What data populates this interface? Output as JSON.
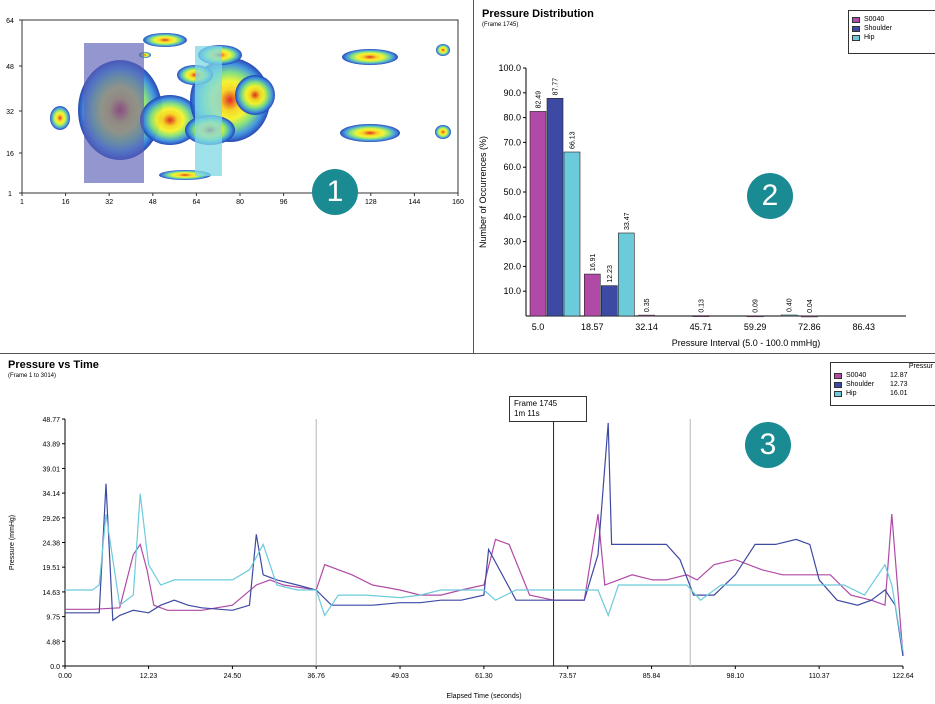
{
  "panel1": {
    "badge": "1",
    "y_ticks": [
      "64",
      "48",
      "32",
      "16",
      "1"
    ],
    "x_ticks": [
      "1",
      "16",
      "32",
      "48",
      "64",
      "80",
      "96",
      "112",
      "128",
      "144",
      "160"
    ],
    "colors": {
      "shoulder_overlay": "#5a5fb5",
      "hip_overlay": "#7fd8e6"
    }
  },
  "chart_data": [
    {
      "type": "bar",
      "title": "Pressure Distribution",
      "subtitle": "(Frame 1745)",
      "xlabel": "Pressure Interval (5.0 - 100.0 mmHg)",
      "ylabel": "Number of Occurrences (%)",
      "ylim": [
        0,
        100
      ],
      "y_ticks": [
        "10.0",
        "20.0",
        "30.0",
        "40.0",
        "50.0",
        "60.0",
        "70.0",
        "80.0",
        "90.0",
        "100.0"
      ],
      "categories": [
        "5.0",
        "18.57",
        "32.14",
        "45.71",
        "59.29",
        "72.86",
        "86.43"
      ],
      "series": [
        {
          "name": "S0040",
          "color": "#b14aa6",
          "values": [
            82.49,
            16.91,
            0.35,
            0.13,
            0.09,
            0.04,
            0
          ],
          "labels": [
            "82.49",
            "16.91",
            "0.35",
            "0.13",
            "0.09",
            "0.04",
            ""
          ]
        },
        {
          "name": "Shoulder",
          "color": "#3d4aa3",
          "values": [
            87.77,
            12.23,
            0,
            0,
            0,
            0,
            0
          ],
          "labels": [
            "87.77",
            "12.23",
            "",
            "",
            "",
            "",
            ""
          ]
        },
        {
          "name": "Hip",
          "color": "#6ccbdb",
          "values": [
            66.13,
            33.47,
            0,
            0,
            0.4,
            0,
            0
          ],
          "labels": [
            "66.13",
            "33.47",
            "",
            "",
            "0.40",
            "",
            ""
          ]
        }
      ],
      "legend_position": "top-right",
      "badge": "2"
    },
    {
      "type": "line",
      "title": "Pressure vs Time",
      "subtitle": "(Frame 1 to 3014)",
      "xlabel": "Elapsed Time (seconds)",
      "ylabel": "Pressure (mmHg)",
      "xlim": [
        0,
        122.64
      ],
      "ylim": [
        0,
        48.77
      ],
      "x_ticks": [
        "0.00",
        "12.23",
        "24.50",
        "36.76",
        "49.03",
        "61.30",
        "73.57",
        "85.84",
        "98.10",
        "110.37",
        "122.64"
      ],
      "y_ticks": [
        "0.0",
        "4.88",
        "9.75",
        "14.63",
        "19.51",
        "24.38",
        "29.26",
        "34.14",
        "39.01",
        "43.89",
        "48.77"
      ],
      "legend_header": "Pressur",
      "legend_position": "top-right",
      "series": [
        {
          "name": "S0040",
          "color": "#b14aa6",
          "legend_value": "12.87",
          "x": [
            0,
            4,
            8,
            10,
            11,
            12,
            13,
            15,
            18,
            20,
            24.5,
            28,
            30,
            32,
            36.76,
            38,
            42,
            45,
            49.03,
            52,
            55,
            58,
            61.3,
            63,
            65,
            68,
            71.5,
            73.57,
            76,
            78,
            79,
            81,
            83,
            86,
            88,
            91,
            92.5,
            95,
            98.1,
            102,
            105,
            108,
            110.37,
            112,
            115,
            118,
            120,
            121,
            122.64
          ],
          "y": [
            11.2,
            11.2,
            11.5,
            22,
            24,
            19,
            12,
            11,
            11,
            11,
            12,
            16,
            17,
            16,
            15,
            20,
            18,
            16,
            15,
            14,
            14,
            15,
            16,
            25,
            24,
            14,
            13,
            13,
            13,
            30,
            16,
            17,
            18,
            17,
            17,
            18,
            17,
            20,
            21,
            19,
            18,
            18,
            18,
            18,
            14,
            13,
            12,
            30,
            2
          ]
        },
        {
          "name": "Shoulder",
          "color": "#3d4aa3",
          "legend_value": "12.73",
          "x": [
            0,
            3,
            5,
            6,
            7,
            8,
            10,
            12.23,
            14,
            16,
            18,
            20,
            24.5,
            27,
            28,
            29,
            31,
            34,
            36.76,
            39,
            42,
            45,
            49.03,
            52,
            55,
            58,
            61.3,
            62,
            66,
            70,
            73.57,
            76,
            78,
            79.5,
            80,
            83,
            86,
            88,
            90,
            92,
            95,
            98.1,
            101,
            104,
            107,
            109,
            110.37,
            113,
            116,
            118,
            120,
            121.5,
            122.64
          ],
          "y": [
            10.5,
            10.5,
            10.5,
            36,
            9,
            10,
            11,
            10.5,
            12,
            13,
            12,
            11.5,
            11,
            12,
            26,
            18,
            17,
            16,
            15,
            12,
            12,
            12,
            12.5,
            12.5,
            13,
            13,
            14,
            23,
            13,
            13,
            13,
            13,
            22,
            48,
            24,
            24,
            24,
            24,
            21,
            14,
            14,
            18,
            24,
            24,
            25,
            24,
            17,
            13,
            12,
            13,
            15,
            12,
            2
          ]
        },
        {
          "name": "Hip",
          "color": "#6ccbdb",
          "legend_value": "16.01",
          "x": [
            0,
            4,
            5,
            6,
            8,
            10,
            11,
            12.23,
            14,
            16,
            18,
            20,
            24.5,
            27,
            29,
            31,
            34,
            36.76,
            38,
            40,
            44,
            49.03,
            52,
            55,
            58,
            61.3,
            63,
            66,
            70,
            73.57,
            75,
            78,
            79.5,
            81,
            85,
            88,
            91,
            93,
            96,
            98.1,
            102,
            106,
            110.37,
            114,
            117,
            120,
            121,
            122.64
          ],
          "y": [
            15,
            15,
            16,
            30,
            12,
            14,
            34,
            20,
            16,
            17,
            17,
            17,
            17,
            19,
            24,
            16,
            15,
            15,
            10,
            14,
            14,
            13.5,
            14,
            15,
            15,
            15,
            13,
            15,
            15,
            15,
            15,
            15,
            10,
            16,
            16,
            16,
            16,
            13,
            16,
            16,
            16,
            16,
            16,
            16,
            14,
            20,
            16,
            3
          ]
        }
      ],
      "marker": {
        "x": 71.5,
        "label_line1": "Frame 1745",
        "label_line2": "1m 11s"
      },
      "gridlines_x": [
        36.76,
        91.5
      ],
      "badge": "3"
    }
  ]
}
